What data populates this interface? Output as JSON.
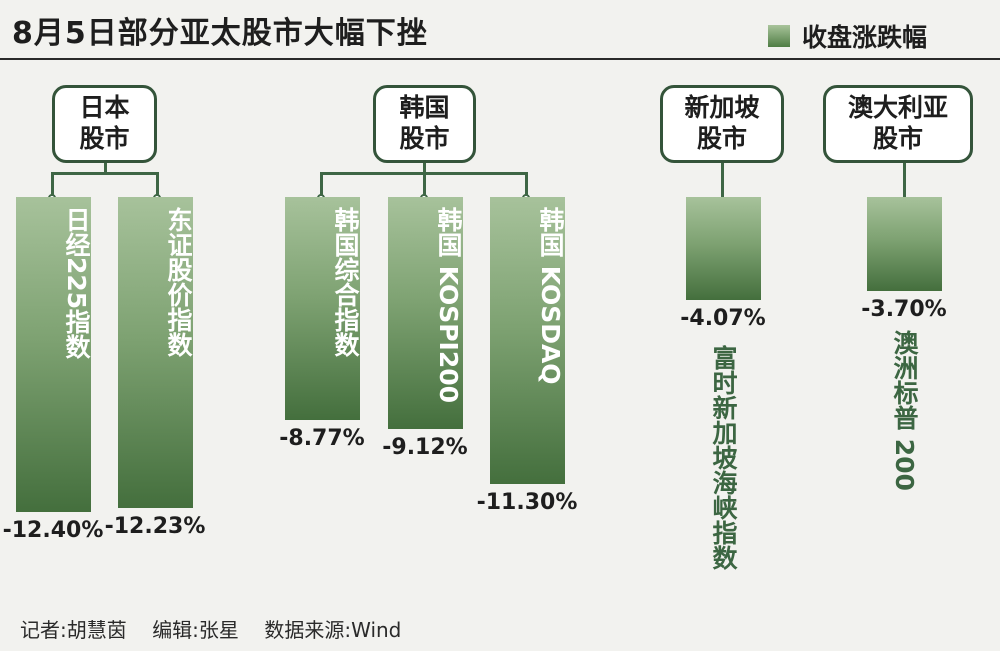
{
  "title": "8月5日部分亚太股市大幅下挫",
  "legend": {
    "label": "收盘涨跌幅",
    "color": "#5a8a4e"
  },
  "footer": {
    "reporter": "记者:胡慧茵",
    "editor": "编辑:张星",
    "source": "数据来源:Wind"
  },
  "groups": [
    {
      "name_line1": "日本",
      "name_line2": "股市"
    },
    {
      "name_line1": "韩国",
      "name_line2": "股市"
    },
    {
      "name_line1": "新加坡",
      "name_line2": "股市"
    },
    {
      "name_line1": "澳大利亚",
      "name_line2": "股市"
    }
  ],
  "chart_data": {
    "type": "bar",
    "title": "8月5日部分亚太股市大幅下挫",
    "legend": [
      "收盘涨跌幅"
    ],
    "categories": [
      "日经225指数",
      "东证股价指数",
      "韩国综合指数",
      "韩国 KOSPI200",
      "韩国 KOSDAQ",
      "富时新加坡海峡指数",
      "澳洲标普 200"
    ],
    "values": [
      -12.4,
      -12.23,
      -8.77,
      -9.12,
      -11.3,
      -4.07,
      -3.7
    ],
    "value_labels": [
      "-12.40%",
      "-12.23%",
      "-8.77%",
      "-9.12%",
      "-11.30%",
      "-4.07%",
      "-3.70%"
    ],
    "groups": [
      "日本股市",
      "日本股市",
      "韩国股市",
      "韩国股市",
      "韩国股市",
      "新加坡股市",
      "澳大利亚股市"
    ],
    "unit": "%"
  }
}
